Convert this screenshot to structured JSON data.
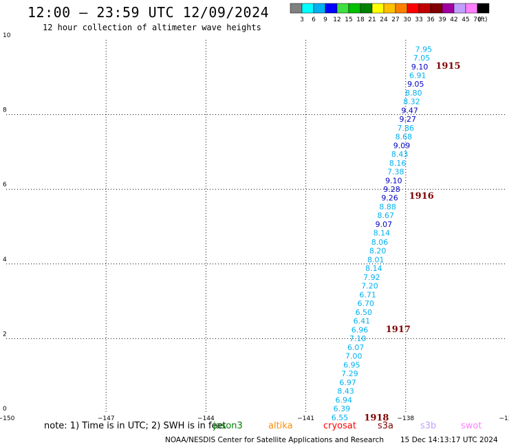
{
  "header": {
    "title": "12:00 – 23:59 UTC 12/09/2024",
    "subtitle": "12 hour collection of altimeter wave heights"
  },
  "colorbar": {
    "colors": [
      "#808080",
      "#00ffff",
      "#00b0f0",
      "#0000ff",
      "#3fdf3f",
      "#00bf00",
      "#008000",
      "#ffff00",
      "#ffc000",
      "#ff8000",
      "#ff0000",
      "#c00000",
      "#800000",
      "#a000a0",
      "#c0a0ff",
      "#ff80ff",
      "#000000"
    ],
    "labels": [
      "3",
      "6",
      "9",
      "12",
      "15",
      "18",
      "21",
      "24",
      "27",
      "30",
      "33",
      "36",
      "39",
      "42",
      "45",
      "70"
    ],
    "unit": "(ft)"
  },
  "chart_data": {
    "type": "scatter",
    "x_ticks": [
      "−150",
      "−147",
      "−144",
      "−141",
      "−138",
      "−13"
    ],
    "y_ticks": [
      "0",
      "2",
      "4",
      "6",
      "8",
      "10"
    ],
    "xlim": [
      -150,
      -135
    ],
    "ylim": [
      0,
      10
    ],
    "grid": true,
    "points": [
      {
        "lon": -137.46,
        "lat": 9.75,
        "label": "7.95",
        "color": "#00b0f0"
      },
      {
        "lon": -137.52,
        "lat": 9.52,
        "label": "7.05",
        "color": "#00b0f0"
      },
      {
        "lon": -137.58,
        "lat": 9.28,
        "label": "9.10",
        "color": "#0000c0"
      },
      {
        "lon": -137.64,
        "lat": 9.05,
        "label": "6.91",
        "color": "#00b0f0"
      },
      {
        "lon": -137.7,
        "lat": 8.82,
        "label": "9.05",
        "color": "#0000c0"
      },
      {
        "lon": -137.76,
        "lat": 8.58,
        "label": "8.80",
        "color": "#00b0f0"
      },
      {
        "lon": -137.82,
        "lat": 8.35,
        "label": "8.32",
        "color": "#00b0f0"
      },
      {
        "lon": -137.88,
        "lat": 8.11,
        "label": "9.47",
        "color": "#0000c0"
      },
      {
        "lon": -137.94,
        "lat": 7.88,
        "label": "9.27",
        "color": "#0000c0"
      },
      {
        "lon": -138.0,
        "lat": 7.64,
        "label": "7.86",
        "color": "#00b0f0"
      },
      {
        "lon": -138.06,
        "lat": 7.41,
        "label": "8.68",
        "color": "#00b0f0"
      },
      {
        "lon": -138.12,
        "lat": 7.17,
        "label": "9.09",
        "color": "#0000c0"
      },
      {
        "lon": -138.18,
        "lat": 6.94,
        "label": "8.43",
        "color": "#00b0f0"
      },
      {
        "lon": -138.24,
        "lat": 6.7,
        "label": "8.16",
        "color": "#00b0f0"
      },
      {
        "lon": -138.3,
        "lat": 6.47,
        "label": "7.38",
        "color": "#00b0f0"
      },
      {
        "lon": -138.36,
        "lat": 6.23,
        "label": "9.10",
        "color": "#0000c0"
      },
      {
        "lon": -138.42,
        "lat": 6.0,
        "label": "9.28",
        "color": "#0000c0"
      },
      {
        "lon": -138.48,
        "lat": 5.77,
        "label": "9.26",
        "color": "#0000c0"
      },
      {
        "lon": -138.54,
        "lat": 5.53,
        "label": "8.88",
        "color": "#00b0f0"
      },
      {
        "lon": -138.6,
        "lat": 5.3,
        "label": "8.67",
        "color": "#00b0f0"
      },
      {
        "lon": -138.66,
        "lat": 5.06,
        "label": "9.07",
        "color": "#0000c0"
      },
      {
        "lon": -138.72,
        "lat": 4.83,
        "label": "8.14",
        "color": "#00b0f0"
      },
      {
        "lon": -138.78,
        "lat": 4.59,
        "label": "8.06",
        "color": "#00b0f0"
      },
      {
        "lon": -138.84,
        "lat": 4.36,
        "label": "8.20",
        "color": "#00b0f0"
      },
      {
        "lon": -138.9,
        "lat": 4.12,
        "label": "8.01",
        "color": "#00b0f0"
      },
      {
        "lon": -138.96,
        "lat": 3.89,
        "label": "8.14",
        "color": "#00b0f0"
      },
      {
        "lon": -139.02,
        "lat": 3.65,
        "label": "7.92",
        "color": "#00b0f0"
      },
      {
        "lon": -139.08,
        "lat": 3.42,
        "label": "7.20",
        "color": "#00b0f0"
      },
      {
        "lon": -139.14,
        "lat": 3.18,
        "label": "6.71",
        "color": "#00b0f0"
      },
      {
        "lon": -139.2,
        "lat": 2.95,
        "label": "6.70",
        "color": "#00b0f0"
      },
      {
        "lon": -139.26,
        "lat": 2.71,
        "label": "6.50",
        "color": "#00b0f0"
      },
      {
        "lon": -139.32,
        "lat": 2.48,
        "label": "6.41",
        "color": "#00b0f0"
      },
      {
        "lon": -139.38,
        "lat": 2.24,
        "label": "6.96",
        "color": "#00b0f0"
      },
      {
        "lon": -139.44,
        "lat": 2.01,
        "label": "7.10",
        "color": "#00b0f0"
      },
      {
        "lon": -139.5,
        "lat": 1.77,
        "label": "6.07",
        "color": "#00b0f0"
      },
      {
        "lon": -139.56,
        "lat": 1.54,
        "label": "7.00",
        "color": "#00b0f0"
      },
      {
        "lon": -139.62,
        "lat": 1.3,
        "label": "6.95",
        "color": "#00b0f0"
      },
      {
        "lon": -139.68,
        "lat": 1.07,
        "label": "7.29",
        "color": "#00b0f0"
      },
      {
        "lon": -139.74,
        "lat": 0.83,
        "label": "6.97",
        "color": "#00b0f0"
      },
      {
        "lon": -139.8,
        "lat": 0.6,
        "label": "8.43",
        "color": "#00b0f0"
      },
      {
        "lon": -139.86,
        "lat": 0.36,
        "label": "6.94",
        "color": "#00b0f0"
      },
      {
        "lon": -139.92,
        "lat": 0.13,
        "label": "6.39",
        "color": "#00b0f0"
      },
      {
        "lon": -139.98,
        "lat": -0.11,
        "label": "6.55",
        "color": "#00b0f0"
      }
    ],
    "track_labels": [
      {
        "lon": -137.1,
        "lat": 9.3,
        "text": "1915"
      },
      {
        "lon": -137.9,
        "lat": 5.82,
        "text": "1916"
      },
      {
        "lon": -138.6,
        "lat": 2.25,
        "text": "1917"
      },
      {
        "lon": -139.25,
        "lat": -0.12,
        "text": "1918"
      }
    ]
  },
  "footer": {
    "note": "note: 1) Time is in UTC; 2) SWH is in feet",
    "satellites": [
      {
        "name": "jason3",
        "color": "#008000"
      },
      {
        "name": "altika",
        "color": "#ff8c00"
      },
      {
        "name": "cryosat",
        "color": "#ff0000"
      },
      {
        "name": "s3a",
        "color": "#800000"
      },
      {
        "name": "s3b",
        "color": "#c0a0ff"
      },
      {
        "name": "swot",
        "color": "#ff80ff"
      }
    ],
    "credit": "NOAA/NESDIS Center for Satellite Applications and Research",
    "timestamp": "15 Dec 14:13:17 UTC 2024"
  }
}
